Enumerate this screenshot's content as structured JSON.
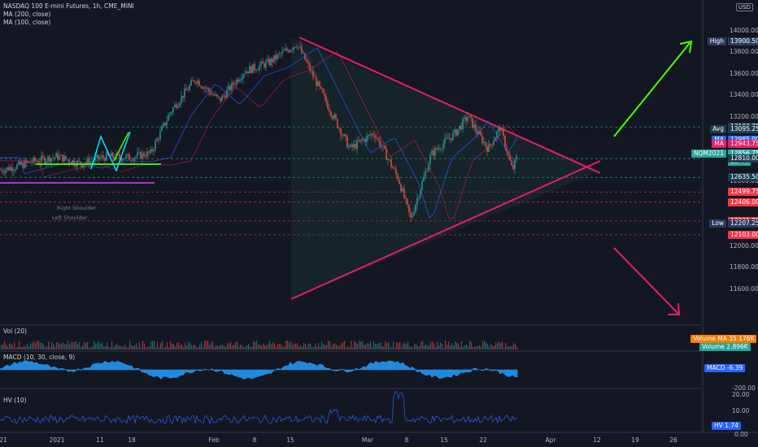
{
  "header": {
    "symbol_line": "NASDAQ 100 E-mini Futures, 1h, CME_MINI",
    "indicator_1": "MA (200, close)",
    "indicator_2": "MA (100, close)",
    "currency": "USD"
  },
  "colors": {
    "background": "#131722",
    "triangle": "#e91e63",
    "arrow_up": "#4cff00",
    "arrow_down": "#e91e63",
    "candle_up": "#26a69a",
    "candle_down": "#ef5350",
    "macd": "#2196f3",
    "hv": "#2962ff"
  },
  "price_axis": {
    "ticks": [
      "14000.00",
      "13800.00",
      "13600.00",
      "13400.00",
      "13200.00",
      "12800.00",
      "12600.00",
      "12400.00",
      "12200.00",
      "12000.00",
      "11800.00",
      "11600.00"
    ]
  },
  "price_labels": [
    {
      "text": "High",
      "value": "13900.50",
      "price": 13900.5,
      "color": "#2a3a5f"
    },
    {
      "text": "",
      "value": "13103.75",
      "price": 13103.75,
      "color": "#1e3d4f"
    },
    {
      "text": "Avg",
      "value": "13095.25",
      "price": 13082,
      "color": "#1e3d4f"
    },
    {
      "text": "MA",
      "value": "12985.00",
      "price": 12985,
      "color": "#2962ff"
    },
    {
      "text": "MA",
      "value": "12943.75",
      "price": 12943.75,
      "color": "#e91e63"
    },
    {
      "text": "NQM2021",
      "value": "12856.75",
      "price": 12856.75,
      "color": "#26a69a",
      "sub": "23:44"
    },
    {
      "text": "",
      "value": "12810.00",
      "price": 12810,
      "color": "#1e3d4f"
    },
    {
      "text": "",
      "value": "12635.50",
      "price": 12635.5,
      "color": "#1e3d4f"
    },
    {
      "text": "",
      "value": "12499.75",
      "price": 12499.75,
      "color": "#f23645"
    },
    {
      "text": "",
      "value": "12406.00",
      "price": 12406,
      "color": "#f23645"
    },
    {
      "text": "",
      "value": "12231.00",
      "price": 12231,
      "color": "#f23645"
    },
    {
      "text": "Low",
      "value": "12207.25",
      "price": 12207.25,
      "color": "#2a3a5f"
    },
    {
      "text": "",
      "value": "12103.00",
      "price": 12103,
      "color": "#f23645"
    }
  ],
  "vol_pane": {
    "title": "Vol (20)",
    "tag1": "Volume MA",
    "tag1_val": "35.176K",
    "tag2": "Volume",
    "tag2_val": "2.896K"
  },
  "macd_pane": {
    "title": "MACD (10, 30, close, 9)",
    "tag": "MACD",
    "tag_val": "-6.39",
    "tick": "-200.00"
  },
  "hv_pane": {
    "title": "HV (10)",
    "tag": "HV",
    "tag_val": "1.74",
    "ticks": [
      "20.00",
      "10.00",
      "0.00"
    ]
  },
  "time_axis": [
    "21",
    "2021",
    "11",
    "18",
    "Feb",
    "8",
    "15",
    "Mar",
    "8",
    "15",
    "22",
    "Apr",
    "12",
    "19",
    "26"
  ],
  "annotations": {
    "right_shoulder": "Right Shoulder",
    "left_shoulder": "Left Shoulder"
  }
}
